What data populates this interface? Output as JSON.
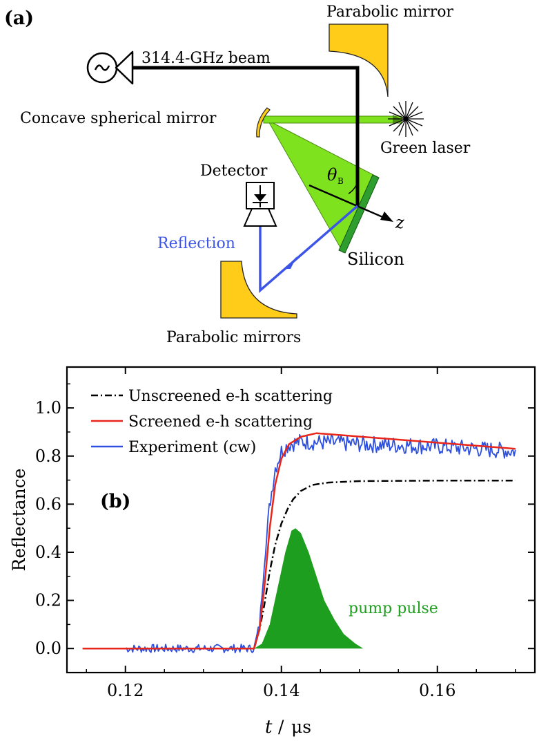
{
  "diagram": {
    "panel_label": "(a)",
    "labels": {
      "beam": "314.4-GHz beam",
      "parabolic_mirror_top": "Parabolic mirror",
      "concave_mirror": "Concave spherical mirror",
      "green_laser": "Green laser",
      "detector": "Detector",
      "angle": "θ",
      "angle_sub": "B",
      "z_axis": "z",
      "reflection": "Reflection",
      "silicon": "Silicon",
      "parabolic_mirrors_bottom": "Parabolic mirrors"
    },
    "colors": {
      "mirror": "#FFCC1A",
      "laser_cone": "#7FE21E",
      "silicon": "#2E9E2E",
      "reflection": "#3D55E6",
      "beam": "#000000"
    }
  },
  "chart_data": {
    "type": "line",
    "panel_label": "(b)",
    "xlabel": "t",
    "xlabel_unit": "μs",
    "ylabel": "Reflectance",
    "xlim": [
      0.1125,
      0.1725
    ],
    "ylim": [
      -0.1,
      1.17
    ],
    "xticks": [
      0.12,
      0.14,
      0.16
    ],
    "xtick_labels": [
      "0.12",
      "0.14",
      "0.16"
    ],
    "yticks": [
      0.0,
      0.2,
      0.4,
      0.6,
      0.8,
      1.0
    ],
    "ytick_labels": [
      "0.0",
      "0.2",
      "0.4",
      "0.6",
      "0.8",
      "1.0"
    ],
    "legend": [
      "Unscreened e-h scattering",
      "Screened e-h scattering",
      "Experiment (cw)"
    ],
    "annotation": "pump pulse",
    "colors": {
      "unscreened": "#000000",
      "screened": "#E8261C",
      "experiment": "#2D4FE0",
      "pump": "#1E9E1E"
    },
    "series": [
      {
        "name": "Unscreened e-h scattering",
        "style": "dashdot",
        "points": [
          [
            0.1365,
            0.0
          ],
          [
            0.1372,
            0.08
          ],
          [
            0.1378,
            0.18
          ],
          [
            0.1385,
            0.32
          ],
          [
            0.1392,
            0.43
          ],
          [
            0.14,
            0.52
          ],
          [
            0.1408,
            0.58
          ],
          [
            0.1415,
            0.62
          ],
          [
            0.1425,
            0.655
          ],
          [
            0.144,
            0.68
          ],
          [
            0.146,
            0.69
          ],
          [
            0.15,
            0.696
          ],
          [
            0.16,
            0.698
          ],
          [
            0.17,
            0.698
          ]
        ]
      },
      {
        "name": "Screened e-h scattering",
        "style": "solid",
        "points": [
          [
            0.1145,
            0.0
          ],
          [
            0.1365,
            0.0
          ],
          [
            0.1372,
            0.08
          ],
          [
            0.1378,
            0.25
          ],
          [
            0.1385,
            0.5
          ],
          [
            0.1392,
            0.68
          ],
          [
            0.14,
            0.79
          ],
          [
            0.141,
            0.85
          ],
          [
            0.1425,
            0.88
          ],
          [
            0.1445,
            0.895
          ],
          [
            0.17,
            0.83
          ]
        ]
      },
      {
        "name": "Experiment (cw)",
        "style": "solid",
        "noise": 0.035,
        "points": [
          [
            0.12,
            0.0
          ],
          [
            0.1365,
            0.0
          ],
          [
            0.1372,
            0.1
          ],
          [
            0.1378,
            0.35
          ],
          [
            0.1385,
            0.6
          ],
          [
            0.1392,
            0.75
          ],
          [
            0.14,
            0.82
          ],
          [
            0.141,
            0.85
          ],
          [
            0.1425,
            0.86
          ],
          [
            0.15,
            0.85
          ],
          [
            0.16,
            0.84
          ],
          [
            0.17,
            0.82
          ]
        ]
      },
      {
        "name": "pump pulse",
        "style": "filled",
        "points": [
          [
            0.1365,
            0.0
          ],
          [
            0.1375,
            0.02
          ],
          [
            0.1385,
            0.1
          ],
          [
            0.1395,
            0.25
          ],
          [
            0.1405,
            0.4
          ],
          [
            0.1413,
            0.49
          ],
          [
            0.1418,
            0.5
          ],
          [
            0.1425,
            0.48
          ],
          [
            0.1435,
            0.4
          ],
          [
            0.1445,
            0.3
          ],
          [
            0.1455,
            0.2
          ],
          [
            0.1468,
            0.12
          ],
          [
            0.148,
            0.06
          ],
          [
            0.1495,
            0.02
          ],
          [
            0.1505,
            0.0
          ]
        ]
      }
    ]
  }
}
